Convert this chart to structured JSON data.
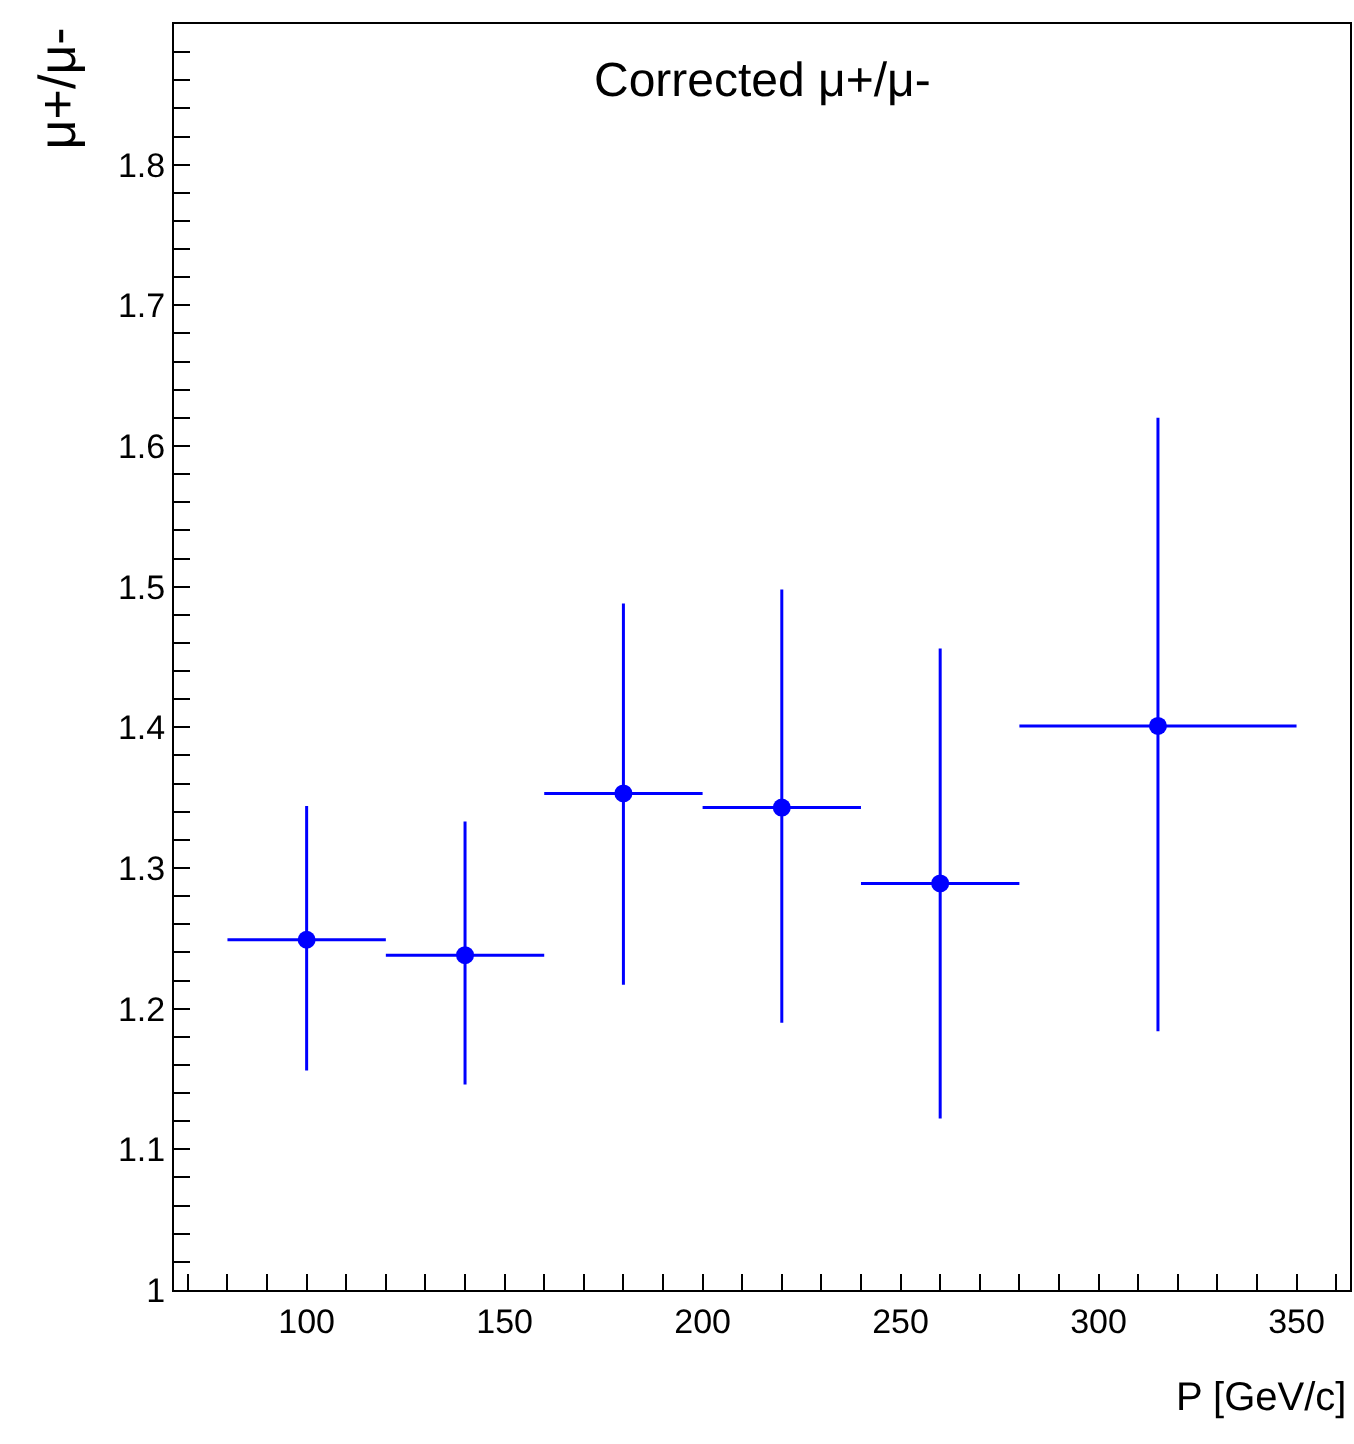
{
  "chart_data": {
    "type": "scatter",
    "title": "Corrected μ+/μ-",
    "xlabel": "P [GeV/c]",
    "ylabel": "μ+/μ-",
    "x": [
      100,
      140,
      180,
      220,
      260,
      315
    ],
    "series": [
      {
        "color": "#0000ff",
        "values": [
          1.249,
          1.238,
          1.353,
          1.343,
          1.289,
          1.401
        ],
        "errors": [
          [
            1.156,
            1.344
          ],
          [
            1.146,
            1.333
          ],
          [
            1.217,
            1.488
          ],
          [
            1.19,
            1.498
          ],
          [
            1.122,
            1.456
          ],
          [
            1.184,
            1.62
          ]
        ],
        "xerrors": [
          [
            80,
            120
          ],
          [
            120,
            160
          ],
          [
            160,
            200
          ],
          [
            200,
            240
          ],
          [
            240,
            280
          ],
          [
            280,
            350
          ]
        ]
      }
    ],
    "xlim": [
      66.5,
      363.5
    ],
    "ylim": [
      1,
      1.9
    ],
    "xticks": [
      {
        "value": 70,
        "label": null
      },
      {
        "value": 80,
        "label": null
      },
      {
        "value": 90,
        "label": null
      },
      100,
      {
        "value": 110,
        "label": null
      },
      {
        "value": 120,
        "label": null
      },
      {
        "value": 130,
        "label": null
      },
      {
        "value": 140,
        "label": null
      },
      150,
      {
        "value": 160,
        "label": null
      },
      {
        "value": 170,
        "label": null
      },
      {
        "value": 180,
        "label": null
      },
      {
        "value": 190,
        "label": null
      },
      200,
      {
        "value": 210,
        "label": null
      },
      {
        "value": 220,
        "label": null
      },
      {
        "value": 230,
        "label": null
      },
      {
        "value": 240,
        "label": null
      },
      250,
      {
        "value": 260,
        "label": null
      },
      {
        "value": 270,
        "label": null
      },
      {
        "value": 280,
        "label": null
      },
      {
        "value": 290,
        "label": null
      },
      300,
      {
        "value": 310,
        "label": null
      },
      {
        "value": 320,
        "label": null
      },
      {
        "value": 330,
        "label": null
      },
      {
        "value": 340,
        "label": null
      },
      350,
      {
        "value": 360,
        "label": null
      }
    ],
    "yticks": [
      1,
      {
        "value": 1.02,
        "label": null
      },
      {
        "value": 1.04,
        "label": null
      },
      {
        "value": 1.06,
        "label": null
      },
      {
        "value": 1.08,
        "label": null
      },
      1.1,
      {
        "value": 1.12,
        "label": null
      },
      {
        "value": 1.14,
        "label": null
      },
      {
        "value": 1.16,
        "label": null
      },
      {
        "value": 1.18,
        "label": null
      },
      1.2,
      {
        "value": 1.22,
        "label": null
      },
      {
        "value": 1.24,
        "label": null
      },
      {
        "value": 1.26,
        "label": null
      },
      {
        "value": 1.28,
        "label": null
      },
      1.3,
      {
        "value": 1.32,
        "label": null
      },
      {
        "value": 1.34,
        "label": null
      },
      {
        "value": 1.36,
        "label": null
      },
      {
        "value": 1.38,
        "label": null
      },
      1.4,
      {
        "value": 1.42,
        "label": null
      },
      {
        "value": 1.44,
        "label": null
      },
      {
        "value": 1.46,
        "label": null
      },
      {
        "value": 1.48,
        "label": null
      },
      1.5,
      {
        "value": 1.52,
        "label": null
      },
      {
        "value": 1.54,
        "label": null
      },
      {
        "value": 1.56,
        "label": null
      },
      {
        "value": 1.58,
        "label": null
      },
      1.6,
      {
        "value": 1.62,
        "label": null
      },
      {
        "value": 1.64,
        "label": null
      },
      {
        "value": 1.66,
        "label": null
      },
      {
        "value": 1.68,
        "label": null
      },
      1.7,
      {
        "value": 1.72,
        "label": null
      },
      {
        "value": 1.74,
        "label": null
      },
      {
        "value": 1.76,
        "label": null
      },
      {
        "value": 1.78,
        "label": null
      },
      1.8,
      {
        "value": 1.82,
        "label": null
      },
      {
        "value": 1.84,
        "label": null
      },
      {
        "value": 1.86,
        "label": null
      },
      {
        "value": 1.88,
        "label": null
      }
    ],
    "marker": "circle"
  }
}
